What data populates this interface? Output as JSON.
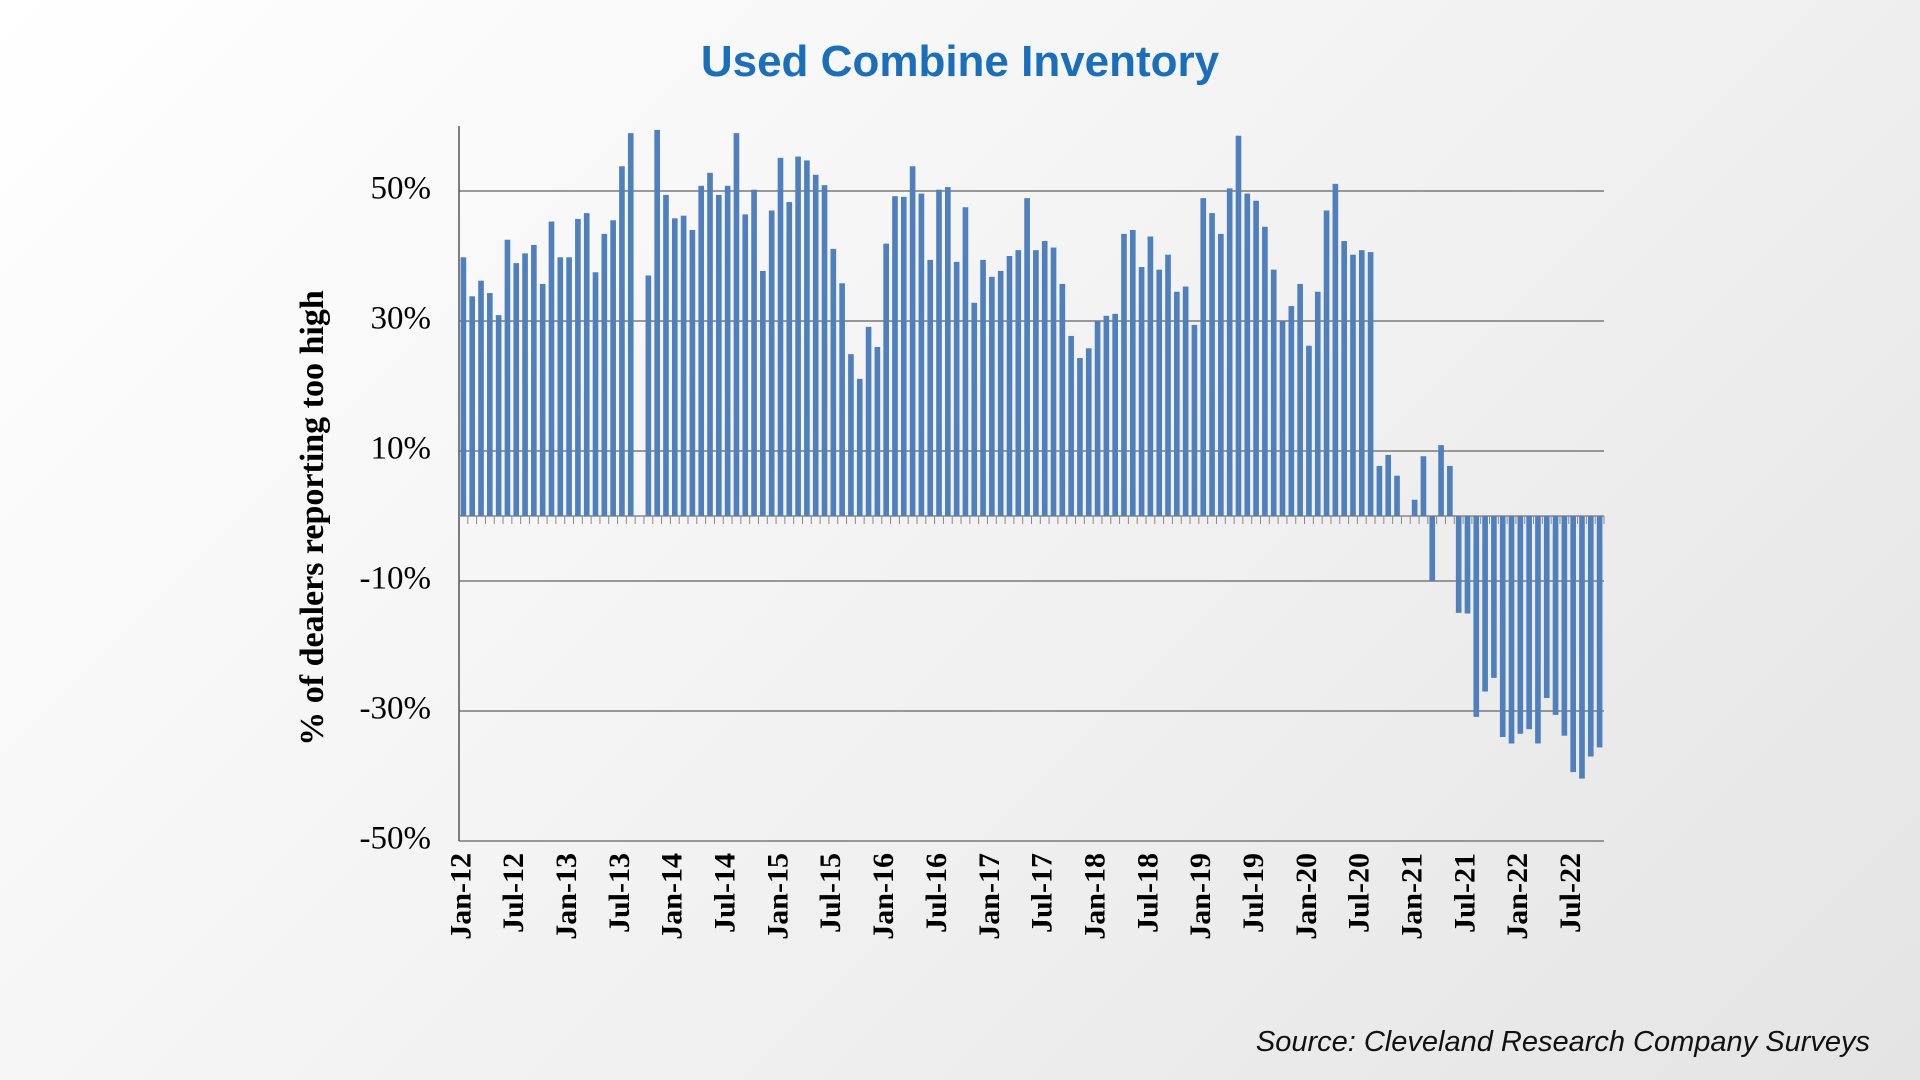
{
  "chart_data": {
    "type": "bar",
    "title": "Used Combine Inventory",
    "y_label": "% of dealers reporting too high",
    "source": "Source: Cleveland Research Company Surveys",
    "color": "#4f7fbd",
    "grid": true,
    "ylim": [
      -50,
      60
    ],
    "yticks": [
      {
        "value": 50,
        "label": "50%"
      },
      {
        "value": 30,
        "label": "30%"
      },
      {
        "value": 10,
        "label": "10%"
      },
      {
        "value": -10,
        "label": "-10%"
      },
      {
        "value": -30,
        "label": "-30%"
      },
      {
        "value": -50,
        "label": "-50%"
      }
    ],
    "categories": [
      "Jan-12",
      null,
      null,
      null,
      null,
      null,
      "Jul-12",
      null,
      null,
      null,
      null,
      null,
      "Jan-13",
      null,
      null,
      null,
      null,
      null,
      "Jul-13",
      null,
      null,
      null,
      null,
      null,
      "Jan-14",
      null,
      null,
      null,
      null,
      null,
      "Jul-14",
      null,
      null,
      null,
      null,
      null,
      "Jan-15",
      null,
      null,
      null,
      null,
      null,
      "Jul-15",
      null,
      null,
      null,
      null,
      null,
      "Jan-16",
      null,
      null,
      null,
      null,
      null,
      "Jul-16",
      null,
      null,
      null,
      null,
      null,
      "Jan-17",
      null,
      null,
      null,
      null,
      null,
      "Jul-17",
      null,
      null,
      null,
      null,
      null,
      "Jan-18",
      null,
      null,
      null,
      null,
      null,
      "Jul-18",
      null,
      null,
      null,
      null,
      null,
      "Jan-19",
      null,
      null,
      null,
      null,
      null,
      "Jul-19",
      null,
      null,
      null,
      null,
      null,
      "Jan-20",
      null,
      null,
      null,
      null,
      null,
      "Jul-20",
      null,
      null,
      null,
      null,
      null,
      "Jan-21",
      null,
      null,
      null,
      null,
      null,
      "Jul-21",
      null,
      null,
      null,
      null,
      null,
      "Jan-22",
      null,
      null,
      null,
      null,
      null,
      "Jul-22",
      null,
      null,
      null
    ],
    "values": [
      39.8,
      33.8,
      36.2,
      34.3,
      30.9,
      42.5,
      38.9,
      40.4,
      41.7,
      35.7,
      45.3,
      39.8,
      39.8,
      45.7,
      46.6,
      37.5,
      43.4,
      45.5,
      53.8,
      58.9,
      null,
      37,
      59.4,
      49.4,
      45.8,
      46.2,
      44,
      50.8,
      52.8,
      49.4,
      50.8,
      58.9,
      46.4,
      50.2,
      37.7,
      47,
      55.1,
      48.3,
      55.3,
      54.7,
      52.5,
      50.9,
      41.1,
      35.8,
      24.9,
      21.1,
      29.1,
      26,
      41.9,
      49.2,
      49.1,
      53.8,
      49.6,
      39.4,
      50.2,
      50.6,
      39.1,
      47.5,
      32.8,
      39.4,
      36.8,
      37.7,
      40,
      40.9,
      48.9,
      40.9,
      42.3,
      41.3,
      35.7,
      27.7,
      24.3,
      25.8,
      30,
      30.8,
      31.1,
      43.4,
      44,
      38.3,
      43,
      37.9,
      40.2,
      34.5,
      35.3,
      29.4,
      48.9,
      46.6,
      43.4,
      50.4,
      58.5,
      49.6,
      48.5,
      44.5,
      37.9,
      30,
      32.3,
      35.7,
      26.2,
      34.5,
      47,
      51.1,
      42.3,
      40.2,
      40.9,
      40.6,
      7.7,
      9.4,
      6.2,
      null,
      2.5,
      9.2,
      -10,
      10.9,
      7.7,
      -14.9,
      -15,
      -30.9,
      -27,
      -24.9,
      -34,
      -35,
      -33.5,
      -32.8,
      -35,
      -28,
      -30.6,
      -33.8,
      -39.4,
      -40.4,
      -37,
      -35.6
    ]
  }
}
